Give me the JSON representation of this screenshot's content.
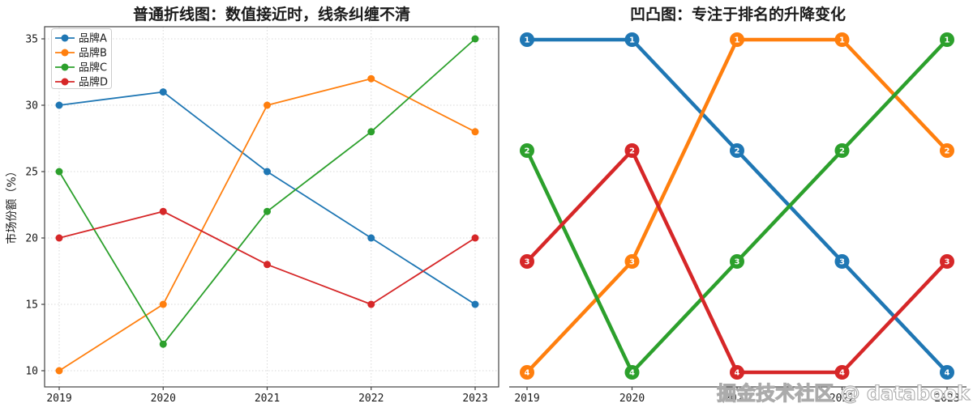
{
  "figure": {
    "background": "#ffffff",
    "watermark": "掘金技术社区 @ databook"
  },
  "colors": {
    "axis": "#444444",
    "grid": "#d8d8d8",
    "text": "#1a1a1a",
    "legend_border": "#cccccc",
    "watermark_outline": "#ababab"
  },
  "chart_data": [
    {
      "type": "line",
      "title": "普通折线图：数值接近时，线条纠缠不清",
      "xlabel": "",
      "ylabel": "市场份额（%）",
      "categories": [
        "2019",
        "2020",
        "2021",
        "2022",
        "2023"
      ],
      "yticks": [
        10,
        15,
        20,
        25,
        30,
        35
      ],
      "ylim": [
        9,
        36
      ],
      "grid": true,
      "legend_position": "upper-left",
      "series": [
        {
          "name": "品牌A",
          "color": "#1f77b4",
          "values": [
            30,
            31,
            25,
            20,
            15
          ]
        },
        {
          "name": "品牌B",
          "color": "#ff7f0e",
          "values": [
            10,
            15,
            30,
            32,
            28
          ]
        },
        {
          "name": "品牌C",
          "color": "#2ca02c",
          "values": [
            25,
            12,
            22,
            28,
            35
          ]
        },
        {
          "name": "品牌D",
          "color": "#d62728",
          "values": [
            20,
            22,
            18,
            15,
            20
          ]
        }
      ]
    },
    {
      "type": "line",
      "subtype": "bump",
      "title": "凹凸图：专注于排名的升降变化",
      "xlabel": "",
      "ylabel": "",
      "categories": [
        "2019",
        "2020",
        "2021",
        "2022",
        "2023"
      ],
      "grid": false,
      "legend_position": "none",
      "marker_labels": "rank",
      "series": [
        {
          "name": "品牌A",
          "color": "#1f77b4",
          "ranks": [
            1,
            1,
            2,
            3,
            4
          ]
        },
        {
          "name": "品牌B",
          "color": "#ff7f0e",
          "ranks": [
            4,
            3,
            1,
            1,
            2
          ]
        },
        {
          "name": "品牌C",
          "color": "#2ca02c",
          "ranks": [
            2,
            4,
            3,
            2,
            1
          ]
        },
        {
          "name": "品牌D",
          "color": "#d62728",
          "ranks": [
            3,
            2,
            4,
            4,
            3
          ]
        }
      ]
    }
  ]
}
